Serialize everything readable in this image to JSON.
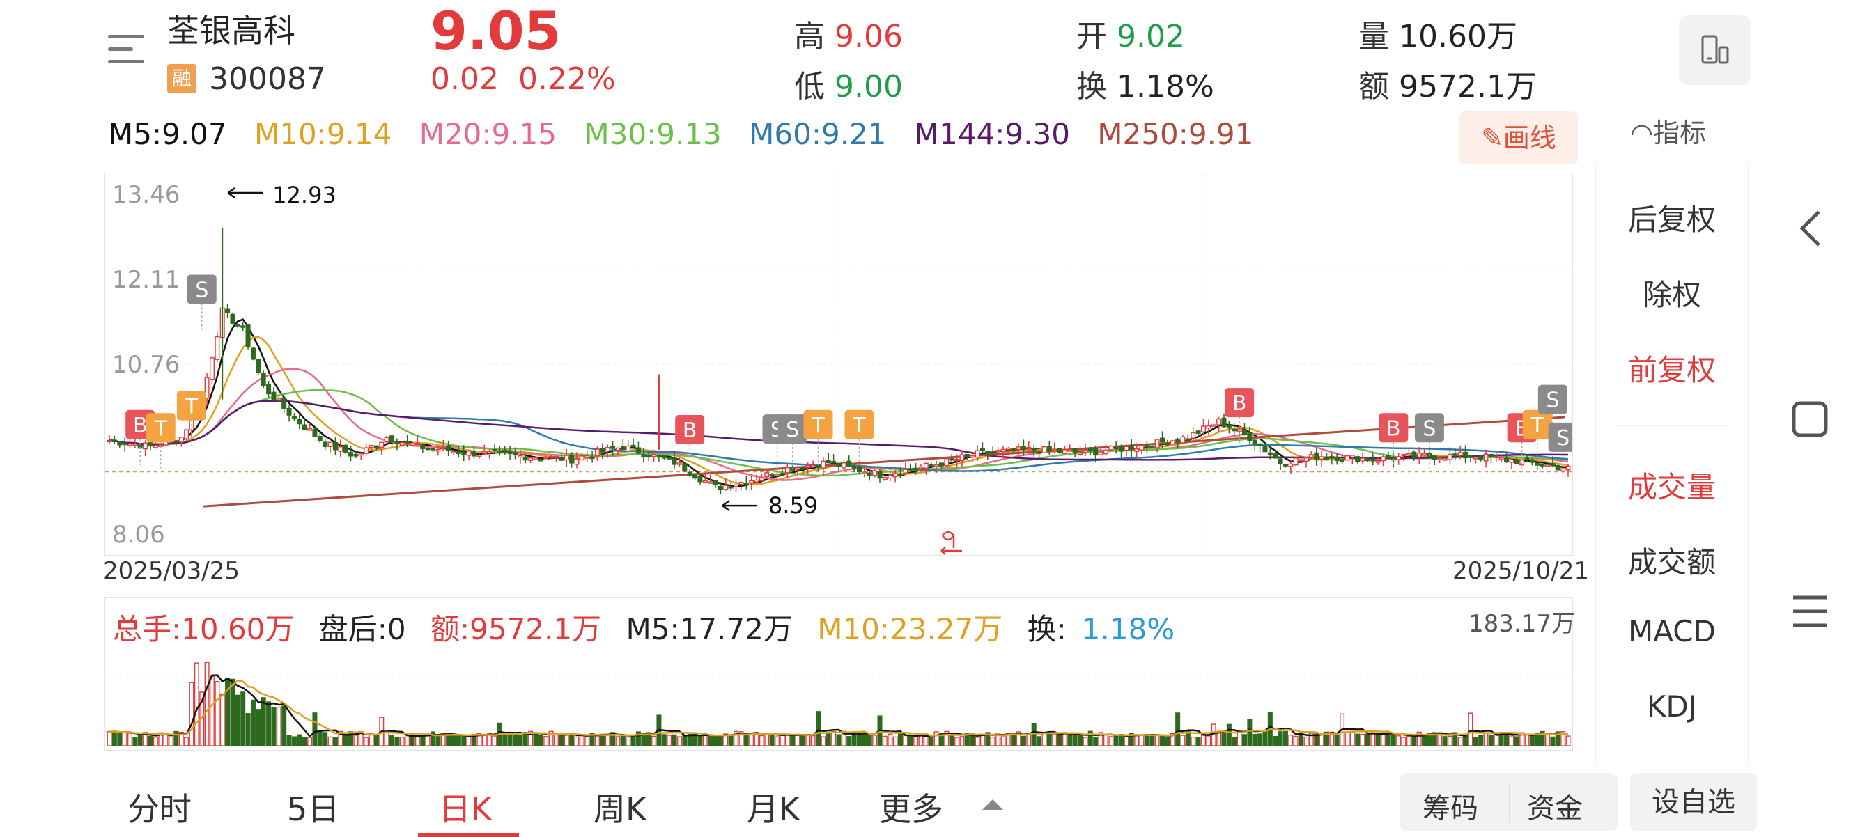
{
  "header": {
    "stock_name": "荃银高科",
    "badge": "融",
    "stock_code": "300087",
    "price": "9.05",
    "change_abs": "0.02",
    "change_pct": "0.22%",
    "high_label": "高",
    "high_value": "9.06",
    "low_label": "低",
    "low_value": "9.00",
    "open_label": "开",
    "open_value": "9.02",
    "turnover_label": "换",
    "turnover_value": "1.18%",
    "volume_label": "量",
    "volume_value": "10.60万",
    "amount_label": "额",
    "amount_value": "9572.1万"
  },
  "ma_legend": {
    "m5": "M5:9.07",
    "m10": "M10:9.14",
    "m20": "M20:9.15",
    "m30": "M30:9.13",
    "m60": "M60:9.21",
    "m144": "M144:9.30",
    "m250": "M250:9.91"
  },
  "toolbar": {
    "draw_label": "画线",
    "indicator_label": "指标"
  },
  "chart_data": {
    "type": "candlestick",
    "y_ticks": [
      "13.46",
      "12.11",
      "10.76",
      "8.06"
    ],
    "ylim": [
      8.06,
      13.46
    ],
    "date_start": "2025/03/25",
    "date_end": "2025/10/21",
    "annotations": [
      {
        "text": "12.93",
        "kind": "max"
      },
      {
        "text": "8.59",
        "kind": "min"
      }
    ],
    "signals": [
      "B",
      "T",
      "T",
      "S",
      "B",
      "S",
      "S",
      "T",
      "T",
      "B",
      "B",
      "S",
      "B",
      "T",
      "S",
      "S"
    ],
    "ma_colors": {
      "m5": "#111111",
      "m10": "#e0a020",
      "m20": "#e86a8a",
      "m30": "#6cc04a",
      "m60": "#2f78b0",
      "m144": "#5a1a6a",
      "m250": "#b04a3a"
    },
    "up_color": "#e33b3b",
    "down_color": "#2d6a1e"
  },
  "volume": {
    "total": "总手:10.60万",
    "after_hours": "盘后:0",
    "amount": "额:9572.1万",
    "m5": "M5:17.72万",
    "m10": "M10:23.27万",
    "turnover_label": "换:",
    "turnover_value": "1.18%",
    "max_label": "183.17万"
  },
  "side_panel": {
    "items": [
      "后复权",
      "除权",
      "前复权",
      "成交量",
      "成交额",
      "MACD",
      "KDJ"
    ],
    "active": [
      "前复权",
      "成交量"
    ]
  },
  "tabs": [
    "分时",
    "5日",
    "日K",
    "周K",
    "月K",
    "更多"
  ],
  "active_tab": "日K",
  "chips": [
    "筹码",
    "资金"
  ],
  "watch_label": "设自选"
}
